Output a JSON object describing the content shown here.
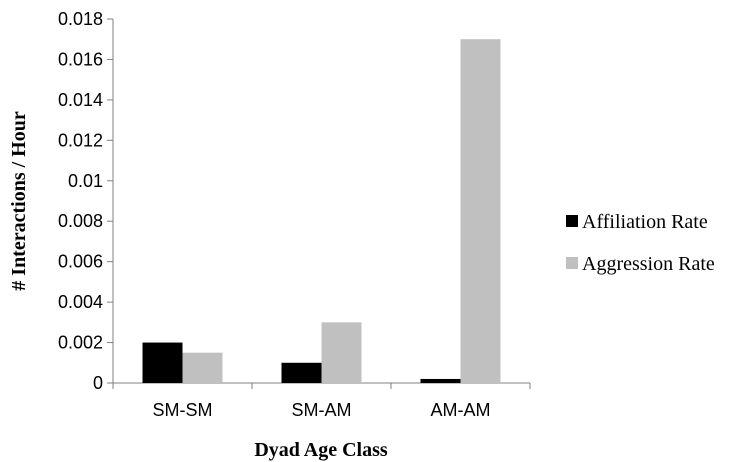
{
  "chart_data": {
    "type": "bar",
    "title": "",
    "xlabel": "Dyad Age Class",
    "ylabel": "# Interactions / Hour",
    "categories": [
      "SM-SM",
      "SM-AM",
      "AM-AM"
    ],
    "series": [
      {
        "name": "Affiliation Rate",
        "color": "#000000",
        "values": [
          0.002,
          0.001,
          0.0002
        ]
      },
      {
        "name": "Aggression Rate",
        "color": "#c0c0c0",
        "values": [
          0.0015,
          0.003,
          0.017
        ]
      }
    ],
    "ylim": [
      0,
      0.018
    ],
    "yticks": [
      "0",
      "0.002",
      "0.004",
      "0.006",
      "0.008",
      "0.01",
      "0.012",
      "0.014",
      "0.016",
      "0.018"
    ],
    "grid": false,
    "legend_position": "right"
  }
}
